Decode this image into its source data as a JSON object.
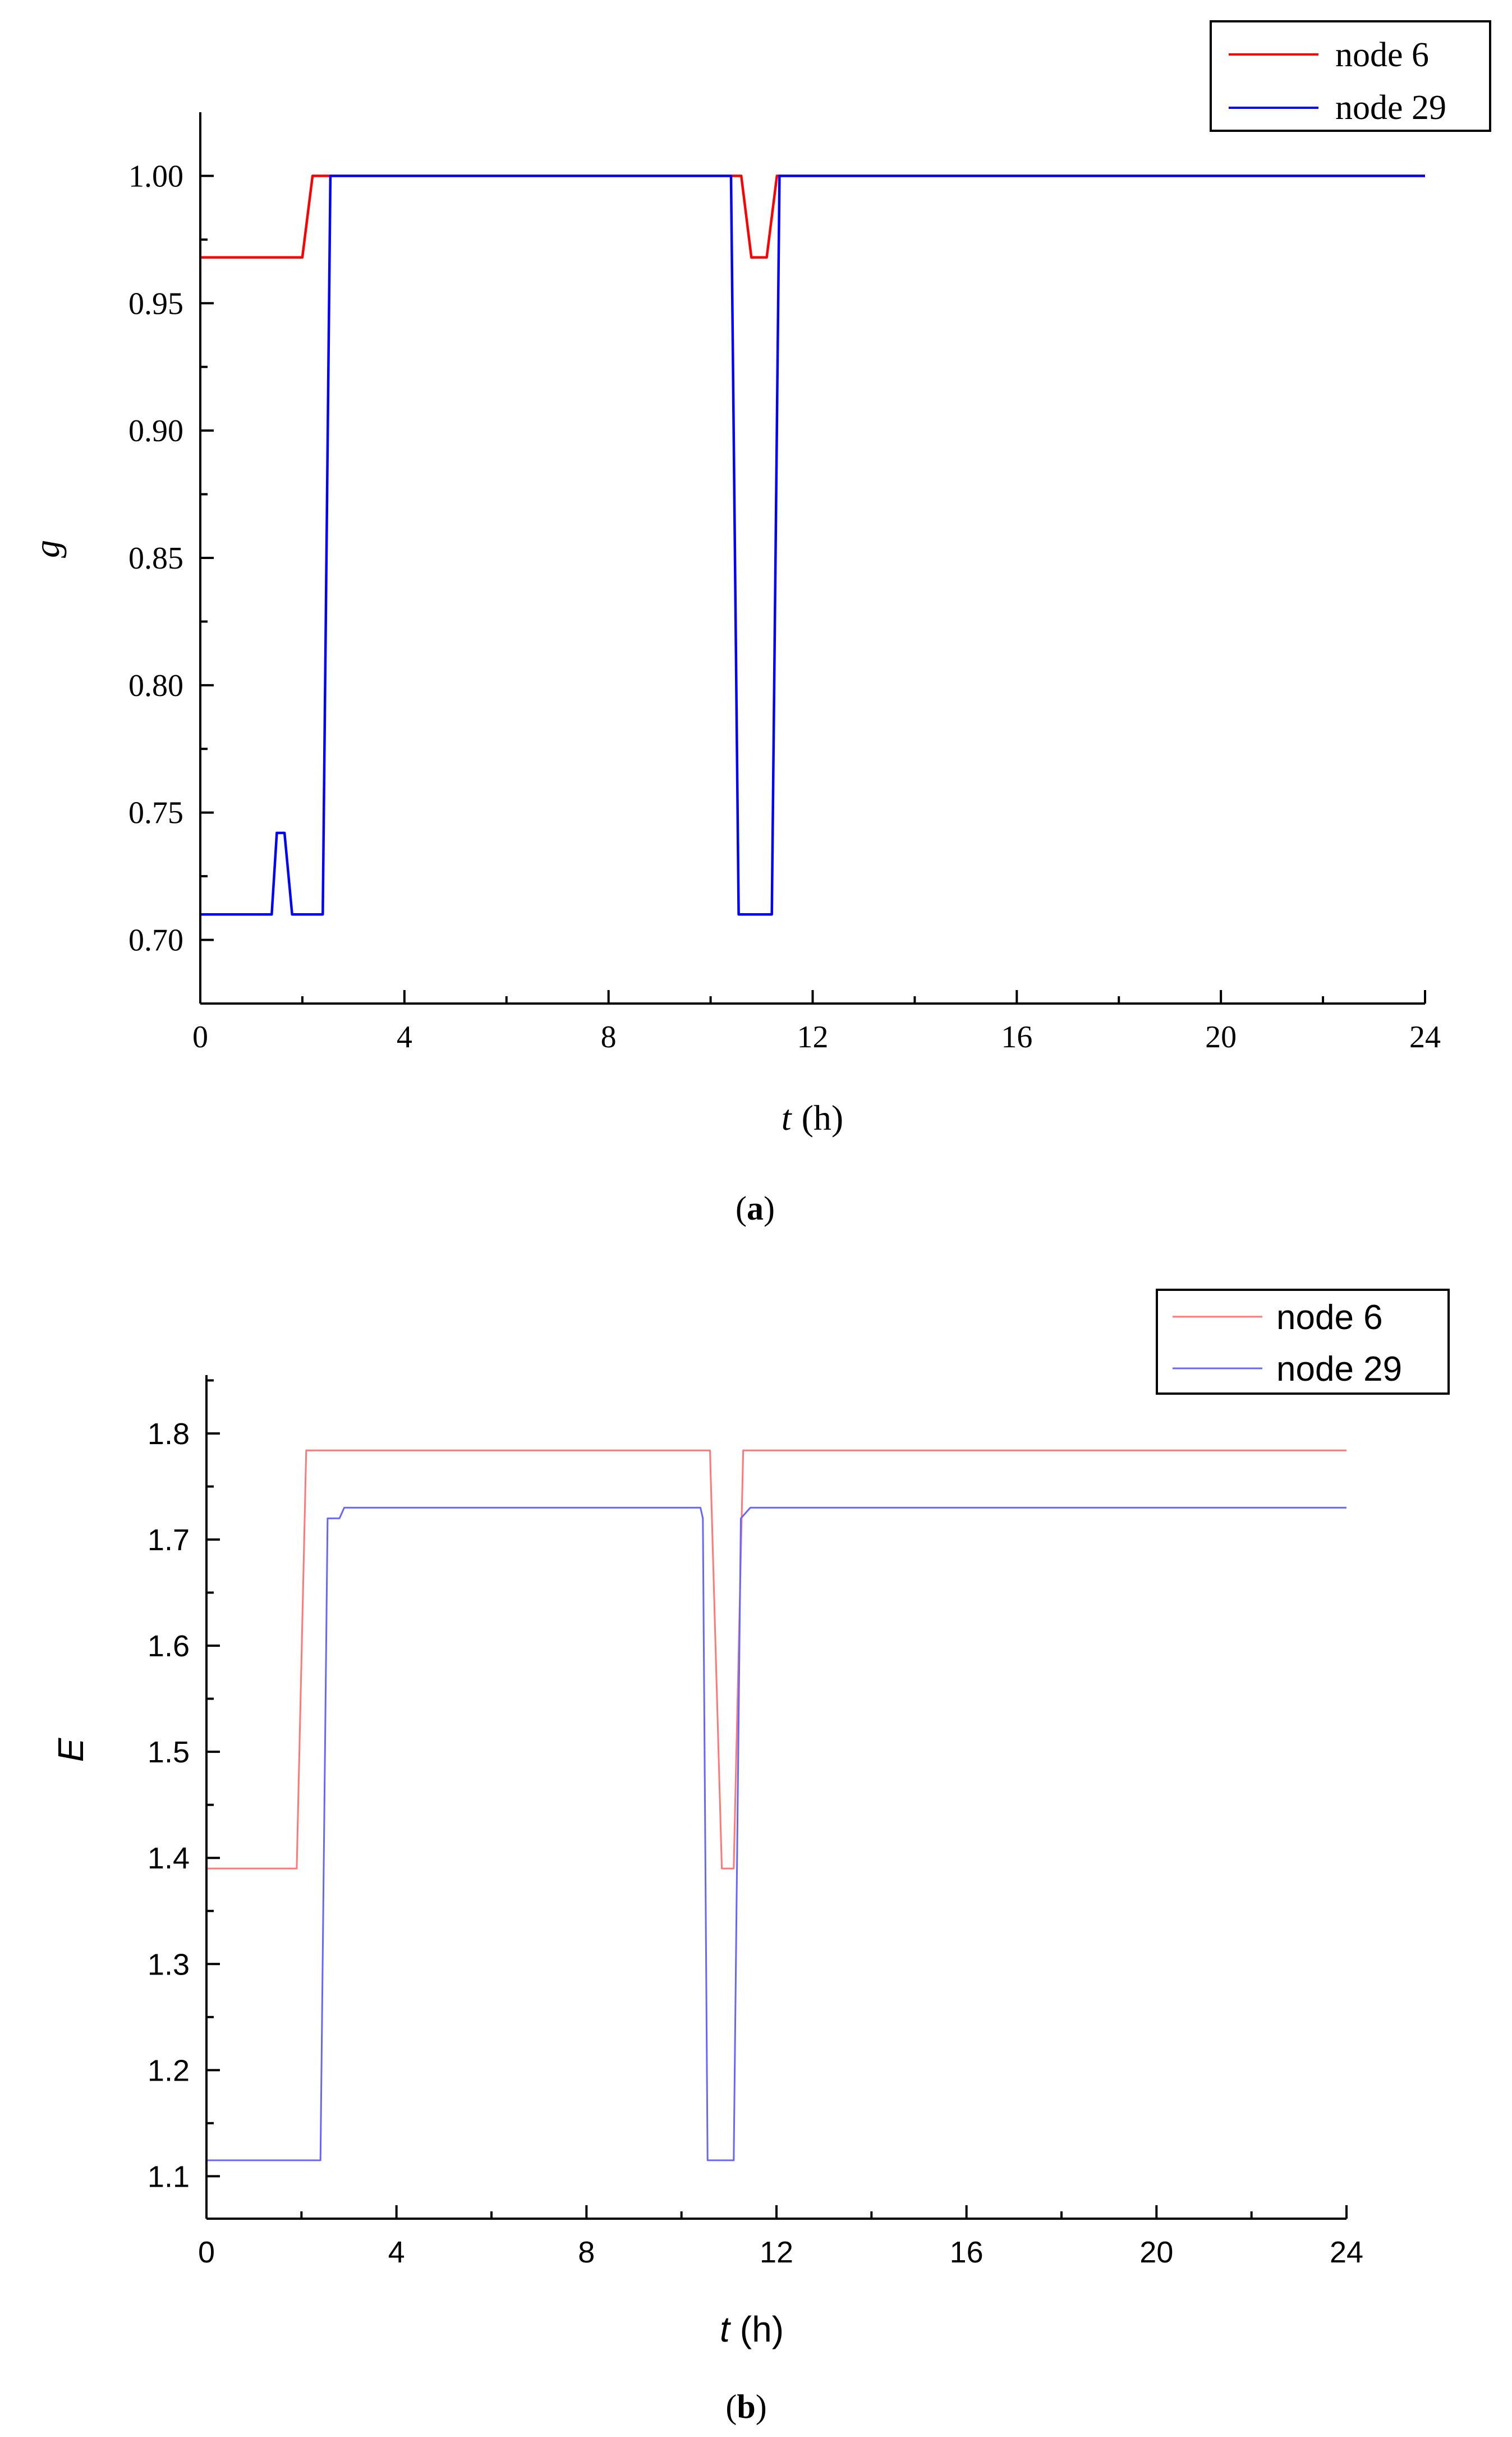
{
  "chart_data": [
    {
      "type": "line",
      "panel": "a",
      "caption_letter": "a",
      "ylabel": "g",
      "xlabel_var": "t",
      "xlabel_unit": "(h)",
      "xlim": [
        0,
        24
      ],
      "ylim": [
        0.675,
        1.025
      ],
      "xticks": [
        0,
        4,
        8,
        12,
        16,
        20,
        24
      ],
      "yticks": [
        0.7,
        0.75,
        0.8,
        0.85,
        0.9,
        0.95,
        1.0
      ],
      "ytick_decimals": 2,
      "legend": "top-right",
      "series": [
        {
          "name": "node 6",
          "color": "#ff0000",
          "x": [
            0,
            2.0,
            2.2,
            10.6,
            10.8,
            11.1,
            11.3,
            24
          ],
          "y": [
            0.968,
            0.968,
            1.0,
            1.0,
            0.968,
            0.968,
            1.0,
            1.0
          ]
        },
        {
          "name": "node 29",
          "color": "#0000ff",
          "x": [
            0,
            1.4,
            1.5,
            1.65,
            1.8,
            2.4,
            2.55,
            10.4,
            10.55,
            11.2,
            11.35,
            24
          ],
          "y": [
            0.71,
            0.71,
            0.742,
            0.742,
            0.71,
            0.71,
            1.0,
            1.0,
            0.71,
            0.71,
            1.0,
            1.0
          ]
        }
      ]
    },
    {
      "type": "line",
      "panel": "b",
      "caption_letter": "b",
      "ylabel": "E",
      "xlabel_var": "t",
      "xlabel_unit": "(h)",
      "xlim": [
        0,
        24
      ],
      "ylim": [
        1.06,
        1.855
      ],
      "xticks": [
        0,
        4,
        8,
        12,
        16,
        20,
        24
      ],
      "yticks": [
        1.1,
        1.2,
        1.3,
        1.4,
        1.5,
        1.6,
        1.7,
        1.8
      ],
      "ytick_decimals": 1,
      "legend": "top-right",
      "series": [
        {
          "name": "node 6",
          "color": "#ff7777",
          "x": [
            0,
            1.9,
            2.1,
            10.6,
            10.85,
            11.1,
            11.3,
            24
          ],
          "y": [
            1.39,
            1.39,
            1.784,
            1.784,
            1.39,
            1.39,
            1.784,
            1.784
          ]
        },
        {
          "name": "node 29",
          "color": "#6666ff",
          "x": [
            0,
            2.4,
            2.55,
            2.8,
            2.9,
            10.4,
            10.45,
            10.55,
            11.1,
            11.25,
            11.45,
            24
          ],
          "y": [
            1.115,
            1.115,
            1.72,
            1.72,
            1.73,
            1.73,
            1.72,
            1.115,
            1.115,
            1.72,
            1.73,
            1.73
          ]
        }
      ]
    }
  ]
}
